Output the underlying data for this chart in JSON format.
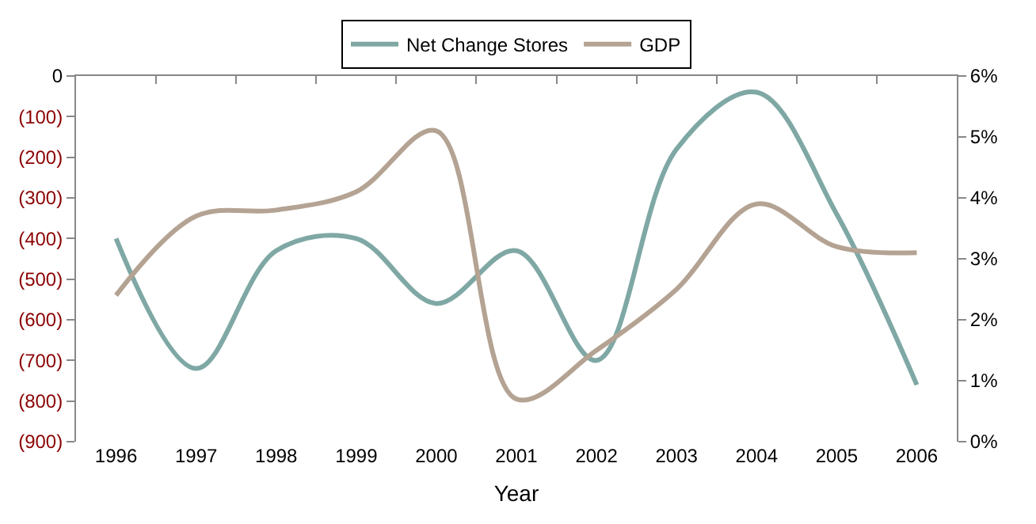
{
  "chart_data": {
    "type": "line",
    "xlabel": "Year",
    "categories": [
      "1996",
      "1997",
      "1998",
      "1999",
      "2000",
      "2001",
      "2002",
      "2003",
      "2004",
      "2005",
      "2006"
    ],
    "series": [
      {
        "name": "Net Change Stores",
        "color": "#7fa8a5",
        "values": [
          -400,
          -720,
          -430,
          -400,
          -560,
          -430,
          -700,
          -180,
          -40,
          -340,
          -760
        ]
      },
      {
        "name": "GDP",
        "color": "#b4a393",
        "axis": "y2",
        "values": [
          2.4,
          3.7,
          3.8,
          4.1,
          5.1,
          0.7,
          1.5,
          2.5,
          3.9,
          3.2,
          3.1
        ]
      }
    ],
    "ylim": [
      -900,
      0
    ],
    "yticks": [
      0,
      {
        "value": -100,
        "label": "(100)"
      },
      {
        "value": -200,
        "label": "(200)"
      },
      {
        "value": -300,
        "label": "(300)"
      },
      {
        "value": -400,
        "label": "(400)"
      },
      {
        "value": -500,
        "label": "(500)"
      },
      {
        "value": -600,
        "label": "(600)"
      },
      {
        "value": -700,
        "label": "(700)"
      },
      {
        "value": -800,
        "label": "(800)"
      },
      {
        "value": -900,
        "label": "(900)"
      }
    ],
    "y2lim": [
      0,
      6
    ],
    "y2ticks": [
      {
        "value": 0,
        "label": "0%"
      },
      {
        "value": 1,
        "label": "1%"
      },
      {
        "value": 2,
        "label": "2%"
      },
      {
        "value": 3,
        "label": "3%"
      },
      {
        "value": 4,
        "label": "4%"
      },
      {
        "value": 5,
        "label": "5%"
      },
      {
        "value": 6,
        "label": "6%"
      }
    ],
    "legend": "top",
    "marker": "none",
    "line_style": "solid"
  }
}
